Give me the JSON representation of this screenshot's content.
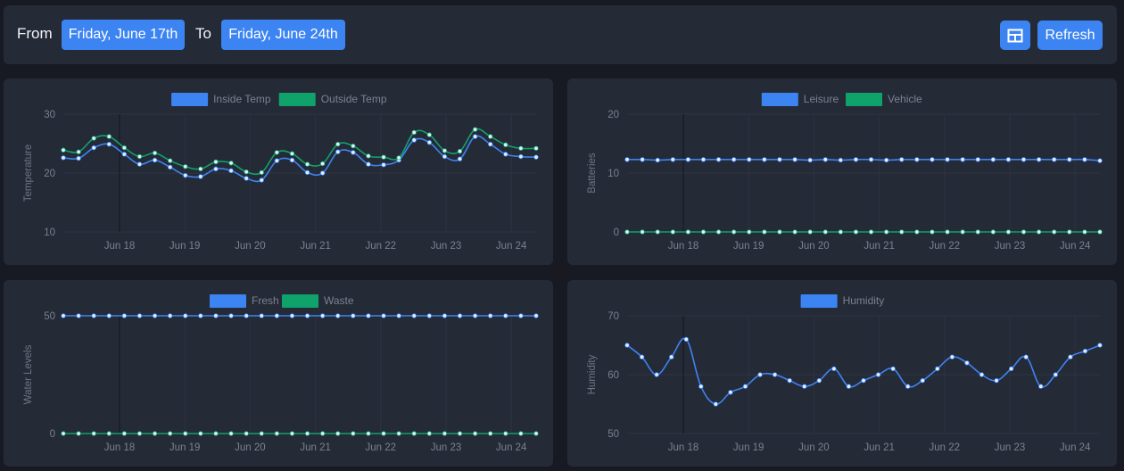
{
  "toolbar": {
    "from_label": "From",
    "from_date": "Friday, June 17th",
    "to_label": "To",
    "to_date": "Friday, June 24th",
    "layout_icon": "table-layout-icon",
    "refresh_label": "Refresh",
    "accent_color": "#3d84f3"
  },
  "chart_data": [
    {
      "type": "line",
      "y_title": "Temperature",
      "ylim": [
        10,
        30
      ],
      "yticks": [
        10,
        20,
        30
      ],
      "x_ticks": [
        "Jun 18",
        "Jun 19",
        "Jun 20",
        "Jun 21",
        "Jun 22",
        "Jun 23",
        "Jun 24"
      ],
      "legend_position": "top-center",
      "grid": true,
      "series": [
        {
          "name": "Inside Temp",
          "color": "#3d84f3",
          "values": [
            22.6,
            22.5,
            24.3,
            24.9,
            23.2,
            21.5,
            22.2,
            21.0,
            19.6,
            19.4,
            20.7,
            20.4,
            19.1,
            18.8,
            22.1,
            22.2,
            20.1,
            20.0,
            23.6,
            23.5,
            21.5,
            21.4,
            22.2,
            25.6,
            25.2,
            22.8,
            22.4,
            26.2,
            24.9,
            23.2,
            22.8,
            22.7
          ]
        },
        {
          "name": "Outside Temp",
          "color": "#10a26b",
          "values": [
            23.9,
            23.6,
            25.9,
            26.2,
            24.3,
            22.8,
            23.4,
            22.1,
            21.1,
            20.7,
            21.9,
            21.7,
            20.2,
            20.1,
            23.5,
            23.3,
            21.5,
            21.6,
            24.9,
            24.6,
            22.9,
            22.7,
            22.6,
            26.9,
            26.5,
            23.8,
            23.7,
            27.4,
            26.2,
            24.8,
            24.2,
            24.2
          ]
        }
      ]
    },
    {
      "type": "line",
      "y_title": "Batteries",
      "ylim": [
        0,
        20
      ],
      "yticks": [
        0,
        10,
        20
      ],
      "x_ticks": [
        "Jun 18",
        "Jun 19",
        "Jun 20",
        "Jun 21",
        "Jun 22",
        "Jun 23",
        "Jun 24"
      ],
      "legend_position": "top-center",
      "grid": true,
      "series": [
        {
          "name": "Leisure",
          "color": "#3d84f3",
          "values": [
            12.3,
            12.3,
            12.2,
            12.3,
            12.3,
            12.3,
            12.3,
            12.3,
            12.3,
            12.3,
            12.3,
            12.3,
            12.2,
            12.3,
            12.2,
            12.3,
            12.3,
            12.2,
            12.3,
            12.3,
            12.3,
            12.3,
            12.3,
            12.3,
            12.3,
            12.3,
            12.3,
            12.3,
            12.3,
            12.3,
            12.3,
            12.1
          ]
        },
        {
          "name": "Vehicle",
          "color": "#10a26b",
          "values": [
            0,
            0,
            0,
            0,
            0,
            0,
            0,
            0,
            0,
            0,
            0,
            0,
            0,
            0,
            0,
            0,
            0,
            0,
            0,
            0,
            0,
            0,
            0,
            0,
            0,
            0,
            0,
            0,
            0,
            0,
            0,
            0
          ]
        }
      ]
    },
    {
      "type": "line",
      "y_title": "Water Levels",
      "ylim": [
        0,
        50
      ],
      "yticks": [
        0,
        50
      ],
      "x_ticks": [
        "Jun 18",
        "Jun 19",
        "Jun 20",
        "Jun 21",
        "Jun 22",
        "Jun 23",
        "Jun 24"
      ],
      "legend_position": "top-center",
      "grid": true,
      "series": [
        {
          "name": "Fresh",
          "color": "#3d84f3",
          "values": [
            50,
            50,
            50,
            50,
            50,
            50,
            50,
            50,
            50,
            50,
            50,
            50,
            50,
            50,
            50,
            50,
            50,
            50,
            50,
            50,
            50,
            50,
            50,
            50,
            50,
            50,
            50,
            50,
            50,
            50,
            50,
            50
          ]
        },
        {
          "name": "Waste",
          "color": "#10a26b",
          "values": [
            0,
            0,
            0,
            0,
            0,
            0,
            0,
            0,
            0,
            0,
            0,
            0,
            0,
            0,
            0,
            0,
            0,
            0,
            0,
            0,
            0,
            0,
            0,
            0,
            0,
            0,
            0,
            0,
            0,
            0,
            0,
            0
          ]
        }
      ]
    },
    {
      "type": "line",
      "y_title": "Humidity",
      "ylim": [
        50,
        70
      ],
      "yticks": [
        50,
        60,
        70
      ],
      "x_ticks": [
        "Jun 18",
        "Jun 19",
        "Jun 20",
        "Jun 21",
        "Jun 22",
        "Jun 23",
        "Jun 24"
      ],
      "legend_position": "top-center",
      "grid": true,
      "series": [
        {
          "name": "Humidity",
          "color": "#3d84f3",
          "values": [
            65,
            63,
            60,
            63,
            66,
            58,
            55,
            57,
            58,
            60,
            60,
            59,
            58,
            59,
            61,
            58,
            59,
            60,
            61,
            58,
            59,
            61,
            63,
            62,
            60,
            59,
            61,
            63,
            58,
            60,
            63,
            64,
            65
          ]
        }
      ]
    }
  ]
}
